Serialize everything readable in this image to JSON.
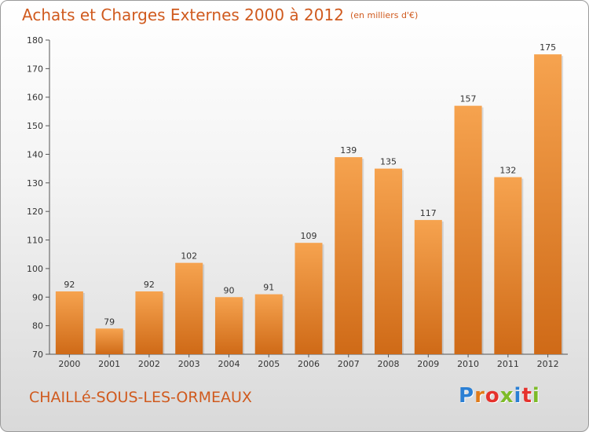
{
  "title": "Achats et Charges Externes 2000 à 2012",
  "subtitle": "(en milliers d'€)",
  "commune": "CHAILLé-SOUS-LES-ORMEAUX",
  "brand": {
    "text": "Proxiti",
    "letter_colors": [
      "#2a7fd4",
      "#e07b1a",
      "#e5322d",
      "#7dbb28",
      "#2a7fd4",
      "#e5322d",
      "#7dbb28"
    ]
  },
  "colors": {
    "bar_top": "#f6a34f",
    "bar_bottom": "#cf6a17",
    "accent": "#d05a1e"
  },
  "chart_data": {
    "type": "bar",
    "categories": [
      "2000",
      "2001",
      "2002",
      "2003",
      "2004",
      "2005",
      "2006",
      "2007",
      "2008",
      "2009",
      "2010",
      "2011",
      "2012"
    ],
    "values": [
      92,
      79,
      92,
      102,
      90,
      91,
      109,
      139,
      135,
      117,
      157,
      132,
      175
    ],
    "ylim": [
      70,
      180
    ],
    "yticks": [
      70,
      80,
      90,
      100,
      110,
      120,
      130,
      140,
      150,
      160,
      170,
      180
    ],
    "grid": false
  }
}
